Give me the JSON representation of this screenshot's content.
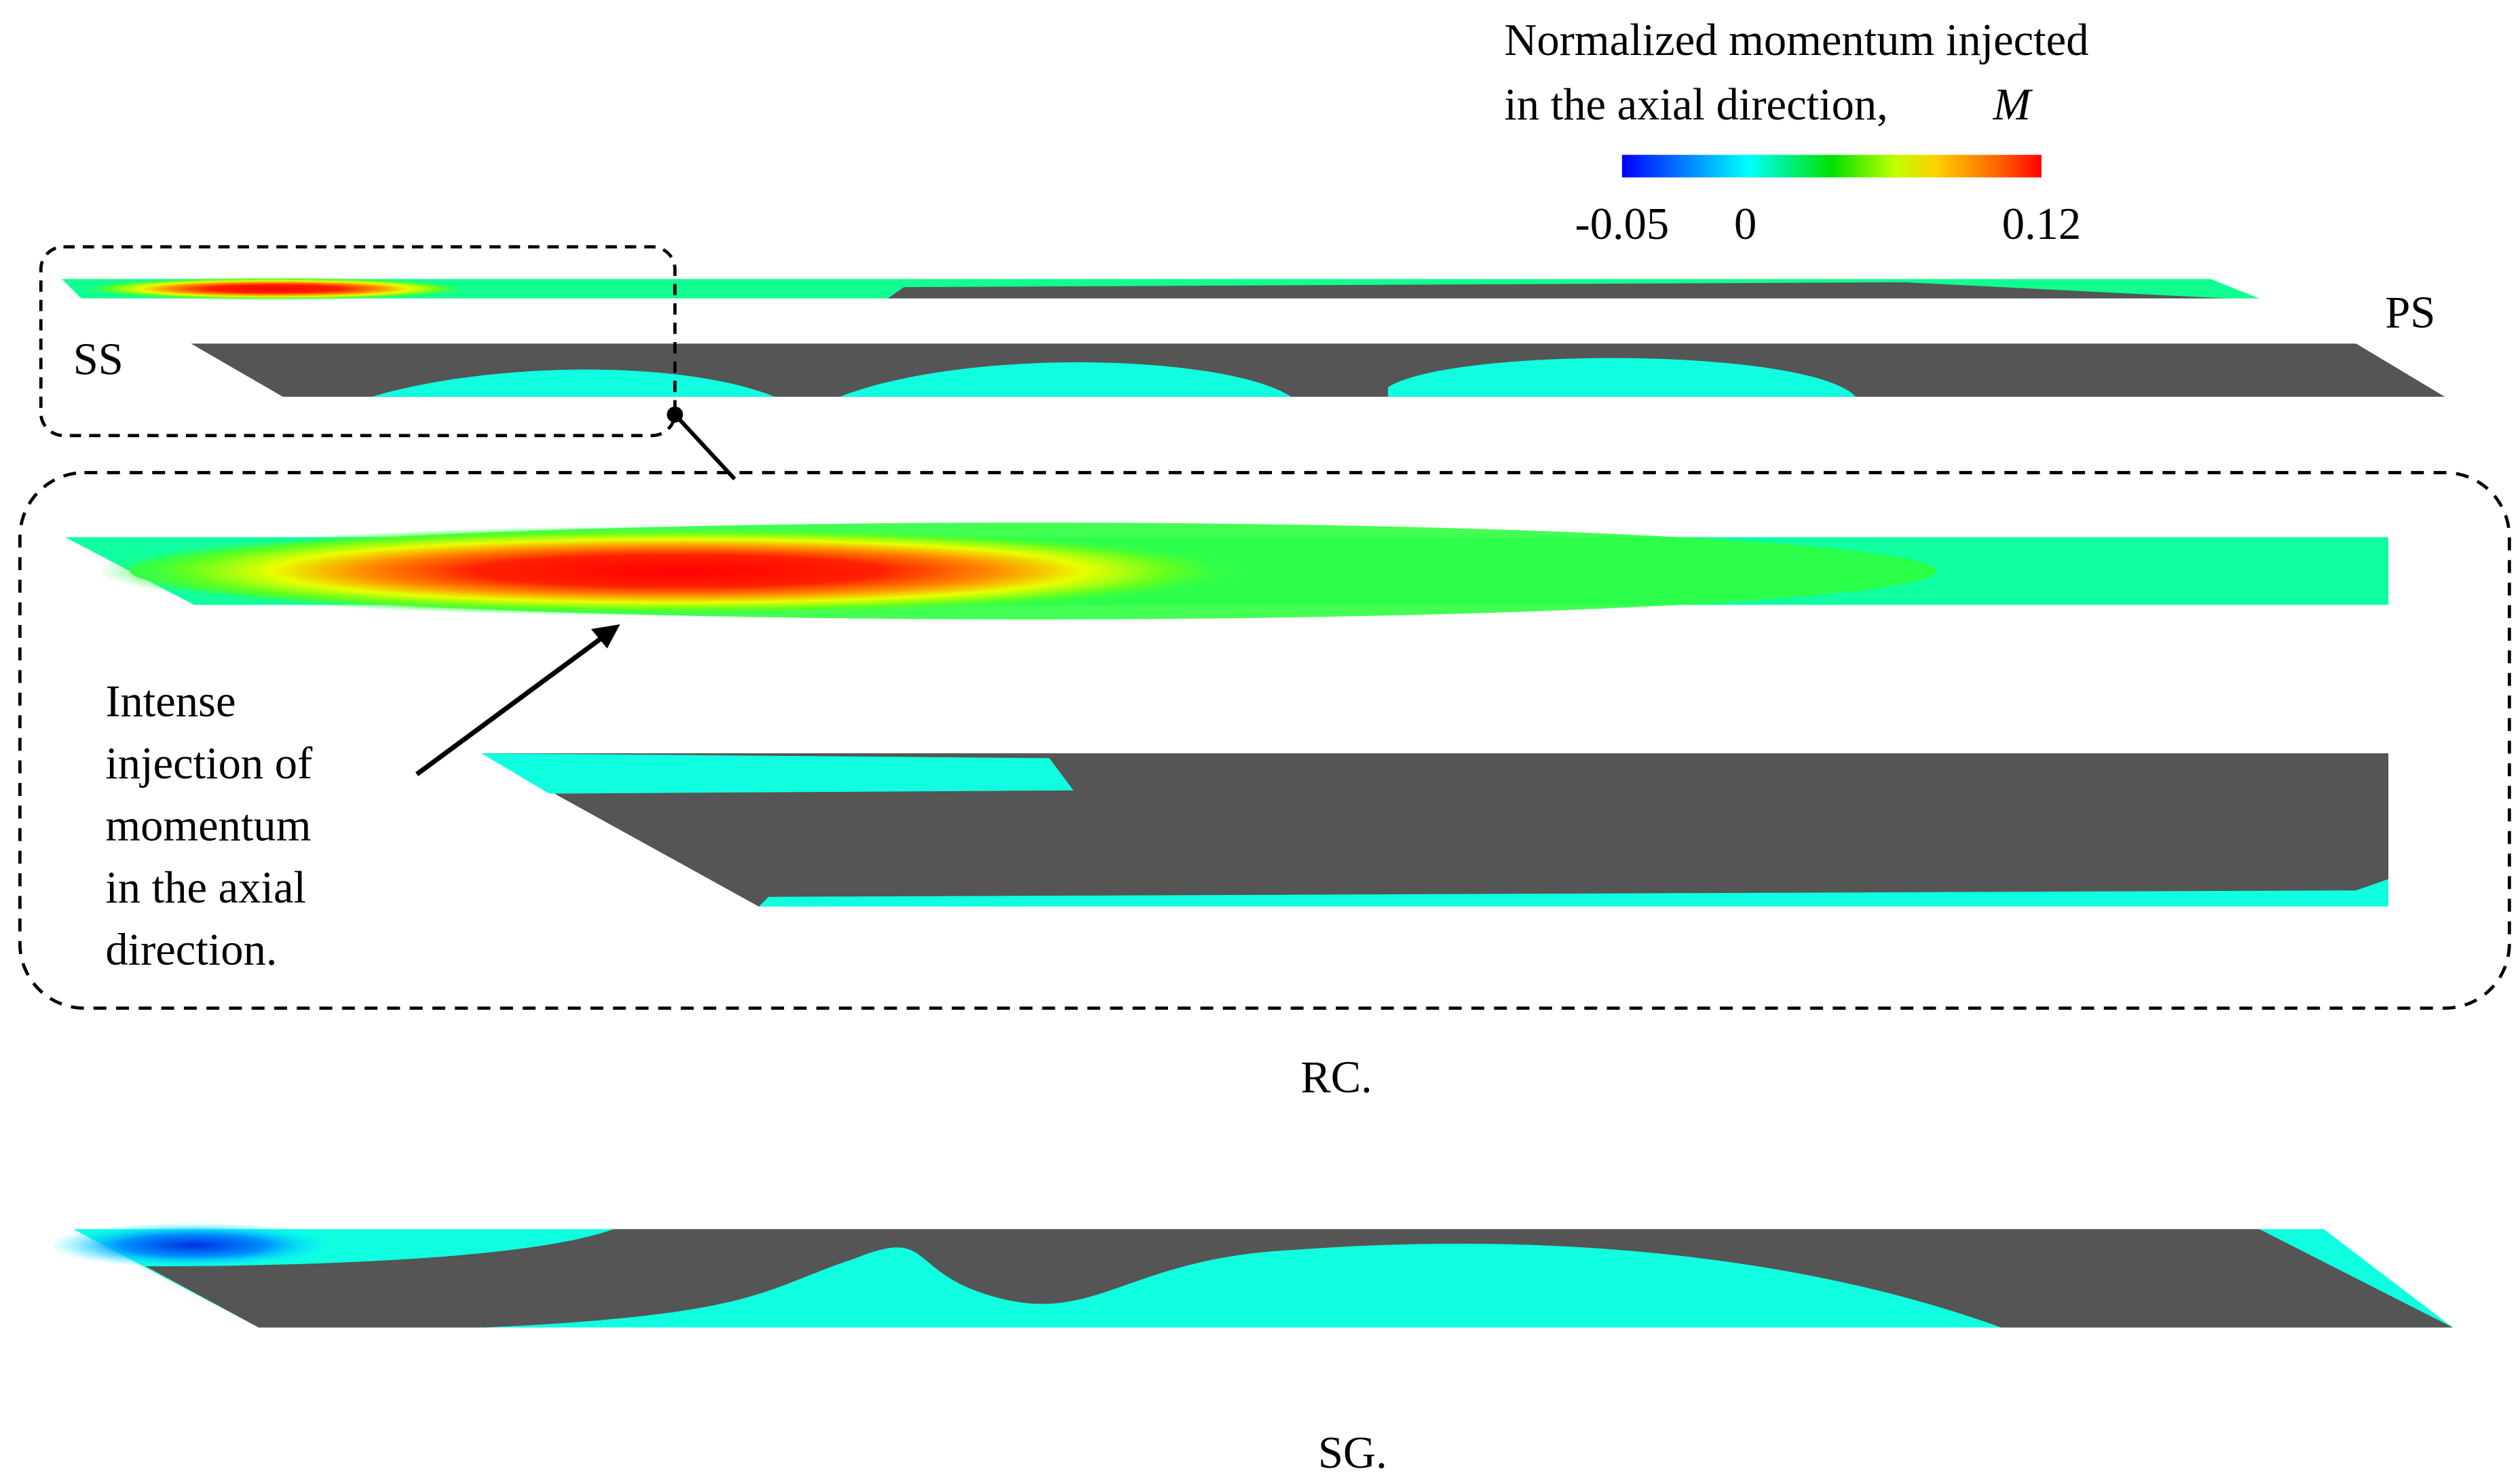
{
  "colorbar": {
    "title_lines": [
      "Normalized momentum injected",
      "in the axial direction,"
    ],
    "symbol": "M",
    "ticks": [
      -0.05,
      0,
      0.12
    ]
  },
  "labels": {
    "suction_side": "SS",
    "pressure_side": "PS"
  },
  "annotation": {
    "lines": [
      "Intense",
      "injection of",
      "momentum",
      "in the axial",
      "direction."
    ]
  },
  "panels": [
    {
      "caption": "RC."
    },
    {
      "caption": "SG."
    }
  ]
}
